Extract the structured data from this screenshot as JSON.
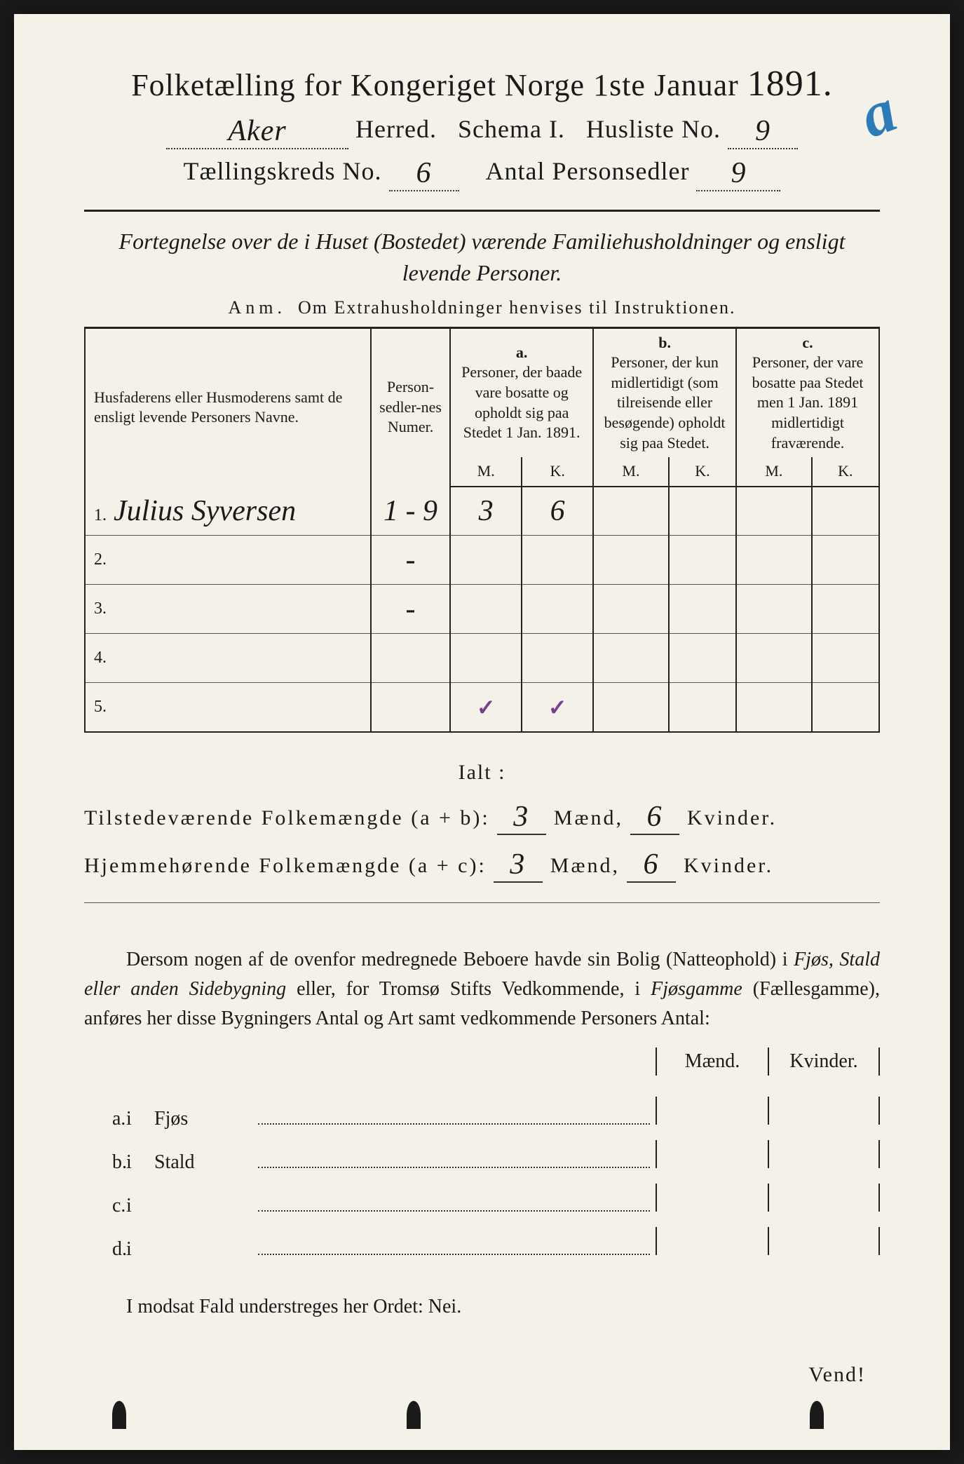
{
  "header": {
    "title_prefix": "Folketælling for Kongeriget Norge 1ste Januar",
    "year": "1891.",
    "herred_value": "Aker",
    "herred_label": "Herred.",
    "schema_label": "Schema I.",
    "husliste_label": "Husliste No.",
    "husliste_value": "9",
    "kreds_label": "Tællingskreds No.",
    "kreds_value": "6",
    "personsedler_label": "Antal Personsedler",
    "personsedler_value": "9",
    "annotation": "a"
  },
  "subtitle": {
    "line": "Fortegnelse over de i Huset (Bostedet) værende Familiehusholdninger og ensligt levende Personer.",
    "anm_prefix": "Anm.",
    "anm_text": "Om Extrahusholdninger henvises til Instruktionen."
  },
  "table": {
    "col_name": "Husfaderens eller Husmoderens samt de ensligt levende Personers Navne.",
    "col_num": "Person-sedler-nes Numer.",
    "col_a_head": "a.",
    "col_a": "Personer, der baade vare bosatte og opholdt sig paa Stedet 1 Jan. 1891.",
    "col_b_head": "b.",
    "col_b": "Personer, der kun midlertidigt (som tilreisende eller besøgende) opholdt sig paa Stedet.",
    "col_c_head": "c.",
    "col_c": "Personer, der vare bosatte paa Stedet men 1 Jan. 1891 midlertidigt fraværende.",
    "mk_m": "M.",
    "mk_k": "K.",
    "rows": [
      {
        "n": "1.",
        "name": "Julius Syversen",
        "num": "1 - 9",
        "a_m": "3",
        "a_k": "6",
        "b_m": "",
        "b_k": "",
        "c_m": "",
        "c_k": ""
      },
      {
        "n": "2.",
        "name": "",
        "num": "-",
        "a_m": "",
        "a_k": "",
        "b_m": "",
        "b_k": "",
        "c_m": "",
        "c_k": ""
      },
      {
        "n": "3.",
        "name": "",
        "num": "-",
        "a_m": "",
        "a_k": "",
        "b_m": "",
        "b_k": "",
        "c_m": "",
        "c_k": ""
      },
      {
        "n": "4.",
        "name": "",
        "num": "",
        "a_m": "",
        "a_k": "",
        "b_m": "",
        "b_k": "",
        "c_m": "",
        "c_k": ""
      },
      {
        "n": "5.",
        "name": "",
        "num": "",
        "a_m": "✓",
        "a_k": "✓",
        "b_m": "",
        "b_k": "",
        "c_m": "",
        "c_k": ""
      }
    ]
  },
  "totals": {
    "ialt": "Ialt :",
    "line1_label": "Tilstedeværende Folkemængde (a + b):",
    "line2_label": "Hjemmehørende Folkemængde (a + c):",
    "maend": "Mænd,",
    "kvinder": "Kvinder.",
    "l1_m": "3",
    "l1_k": "6",
    "l2_m": "3",
    "l2_k": "6"
  },
  "paragraph": {
    "text1": "Dersom nogen af de ovenfor medregnede Beboere havde sin Bolig (Natteophold) i ",
    "em1": "Fjøs, Stald eller anden Sidebygning",
    "text2": " eller, for Tromsø Stifts Vedkommende, i ",
    "em2": "Fjøsgamme",
    "text3": " (Fællesgamme), anføres her disse Bygningers Antal og Art samt vedkommende Personers Antal:"
  },
  "outbuildings": {
    "maend": "Mænd.",
    "kvinder": "Kvinder.",
    "rows": [
      {
        "label": "a.",
        "i": "i",
        "name": "Fjøs"
      },
      {
        "label": "b.",
        "i": "i",
        "name": "Stald"
      },
      {
        "label": "c.",
        "i": "i",
        "name": ""
      },
      {
        "label": "d.",
        "i": "i",
        "name": ""
      }
    ]
  },
  "nei_line": "I modsat Fald understreges her Ordet: Nei.",
  "vend": "Vend!",
  "colors": {
    "paper": "#f4f2e8",
    "ink": "#1a1a1a",
    "blue_pencil": "#2a7bb8",
    "purple_check": "#7a3d8f"
  }
}
